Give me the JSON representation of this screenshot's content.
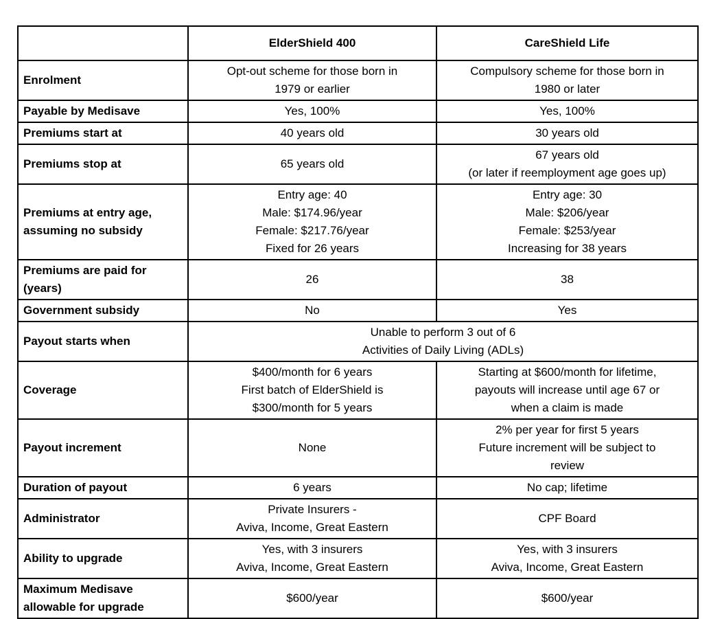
{
  "page": {
    "background_color": "#ffffff",
    "text_color": "#000000",
    "border_color": "#000000"
  },
  "table": {
    "columns": [
      "",
      "ElderShield 400",
      "CareShield Life"
    ],
    "rows": [
      {
        "label": "Enrolment",
        "eldershield": "Opt-out scheme for those born in\n1979 or earlier",
        "careshield": "Compulsory scheme for those born in\n1980 or later"
      },
      {
        "label": "Payable by Medisave",
        "eldershield": "Yes, 100%",
        "careshield": "Yes, 100%"
      },
      {
        "label": "Premiums start at",
        "eldershield": "40 years old",
        "careshield": "30 years old"
      },
      {
        "label": "Premiums stop at",
        "eldershield": "65 years old",
        "careshield": "67 years old\n(or later if reemployment age goes up)"
      },
      {
        "label": "Premiums at entry age,\nassuming no subsidy",
        "eldershield": "Entry age: 40\nMale: $174.96/year\nFemale: $217.76/year\nFixed for 26 years",
        "careshield": "Entry age: 30\nMale: $206/year\nFemale: $253/year\nIncreasing for 38 years"
      },
      {
        "label": "Premiums are paid for\n(years)",
        "eldershield": "26",
        "careshield": "38"
      },
      {
        "label": "Government subsidy",
        "eldershield": "No",
        "careshield": "Yes"
      },
      {
        "label": "Payout starts when",
        "merged": "Unable to perform 3 out of 6\nActivities of Daily Living (ADLs)"
      },
      {
        "label": "Coverage",
        "eldershield": "$400/month for 6 years\nFirst batch of ElderShield is\n$300/month for 5 years",
        "careshield": "Starting at $600/month for lifetime,\npayouts will increase until age 67 or\nwhen a claim is made"
      },
      {
        "label": "Payout increment",
        "eldershield": "None",
        "careshield": "2% per year for first 5 years\nFuture increment will be subject to\nreview"
      },
      {
        "label": "Duration of payout",
        "eldershield": "6 years",
        "careshield": "No cap; lifetime"
      },
      {
        "label": "Administrator",
        "eldershield": "Private Insurers -\nAviva, Income, Great Eastern",
        "careshield": "CPF Board"
      },
      {
        "label": "Ability to upgrade",
        "eldershield": "Yes, with 3 insurers\nAviva, Income, Great Eastern",
        "careshield": "Yes, with 3 insurers\nAviva, Income, Great Eastern"
      },
      {
        "label": "Maximum Medisave\nallowable for upgrade",
        "eldershield": "$600/year",
        "careshield": "$600/year"
      }
    ]
  }
}
